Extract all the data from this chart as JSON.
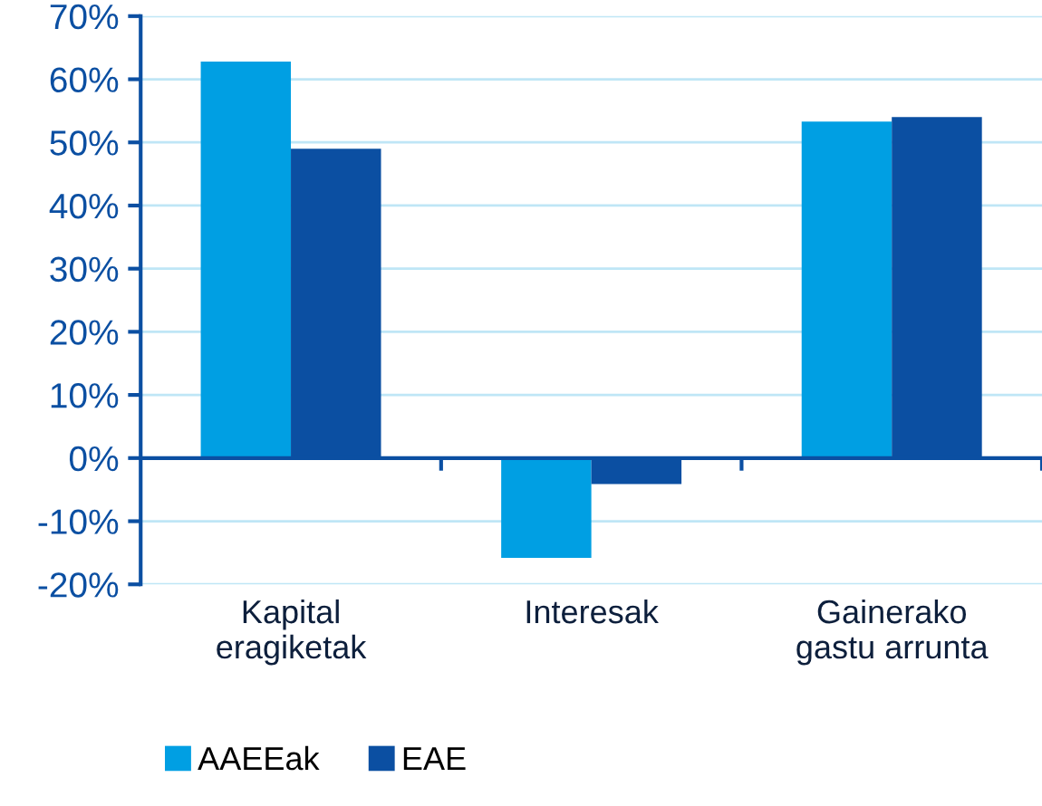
{
  "chart_data": {
    "type": "bar",
    "categories": [
      "Kapital\neragiketak",
      "Interesak",
      "Gainerako\ngastu arrunta"
    ],
    "series": [
      {
        "name": "AAEEak",
        "color": "#009fe3",
        "values": [
          62.8,
          -15.8,
          53.3
        ]
      },
      {
        "name": "EAE",
        "color": "#0b4fa2",
        "values": [
          49.0,
          -4.1,
          54.0
        ]
      }
    ],
    "ylim": [
      -20,
      70
    ],
    "yticks": [
      {
        "value": -20,
        "label": "-20%"
      },
      {
        "value": -10,
        "label": "-10%"
      },
      {
        "value": 0,
        "label": "0%"
      },
      {
        "value": 10,
        "label": "10%"
      },
      {
        "value": 20,
        "label": "20%"
      },
      {
        "value": 30,
        "label": "30%"
      },
      {
        "value": 40,
        "label": "40%"
      },
      {
        "value": 50,
        "label": "50%"
      },
      {
        "value": 60,
        "label": "60%"
      },
      {
        "value": 70,
        "label": "70%"
      }
    ],
    "ref_lines": [
      {
        "axis": "y",
        "value": 0,
        "color": "#0b4fa2"
      }
    ],
    "grid": "y",
    "legend": "bottom left"
  }
}
